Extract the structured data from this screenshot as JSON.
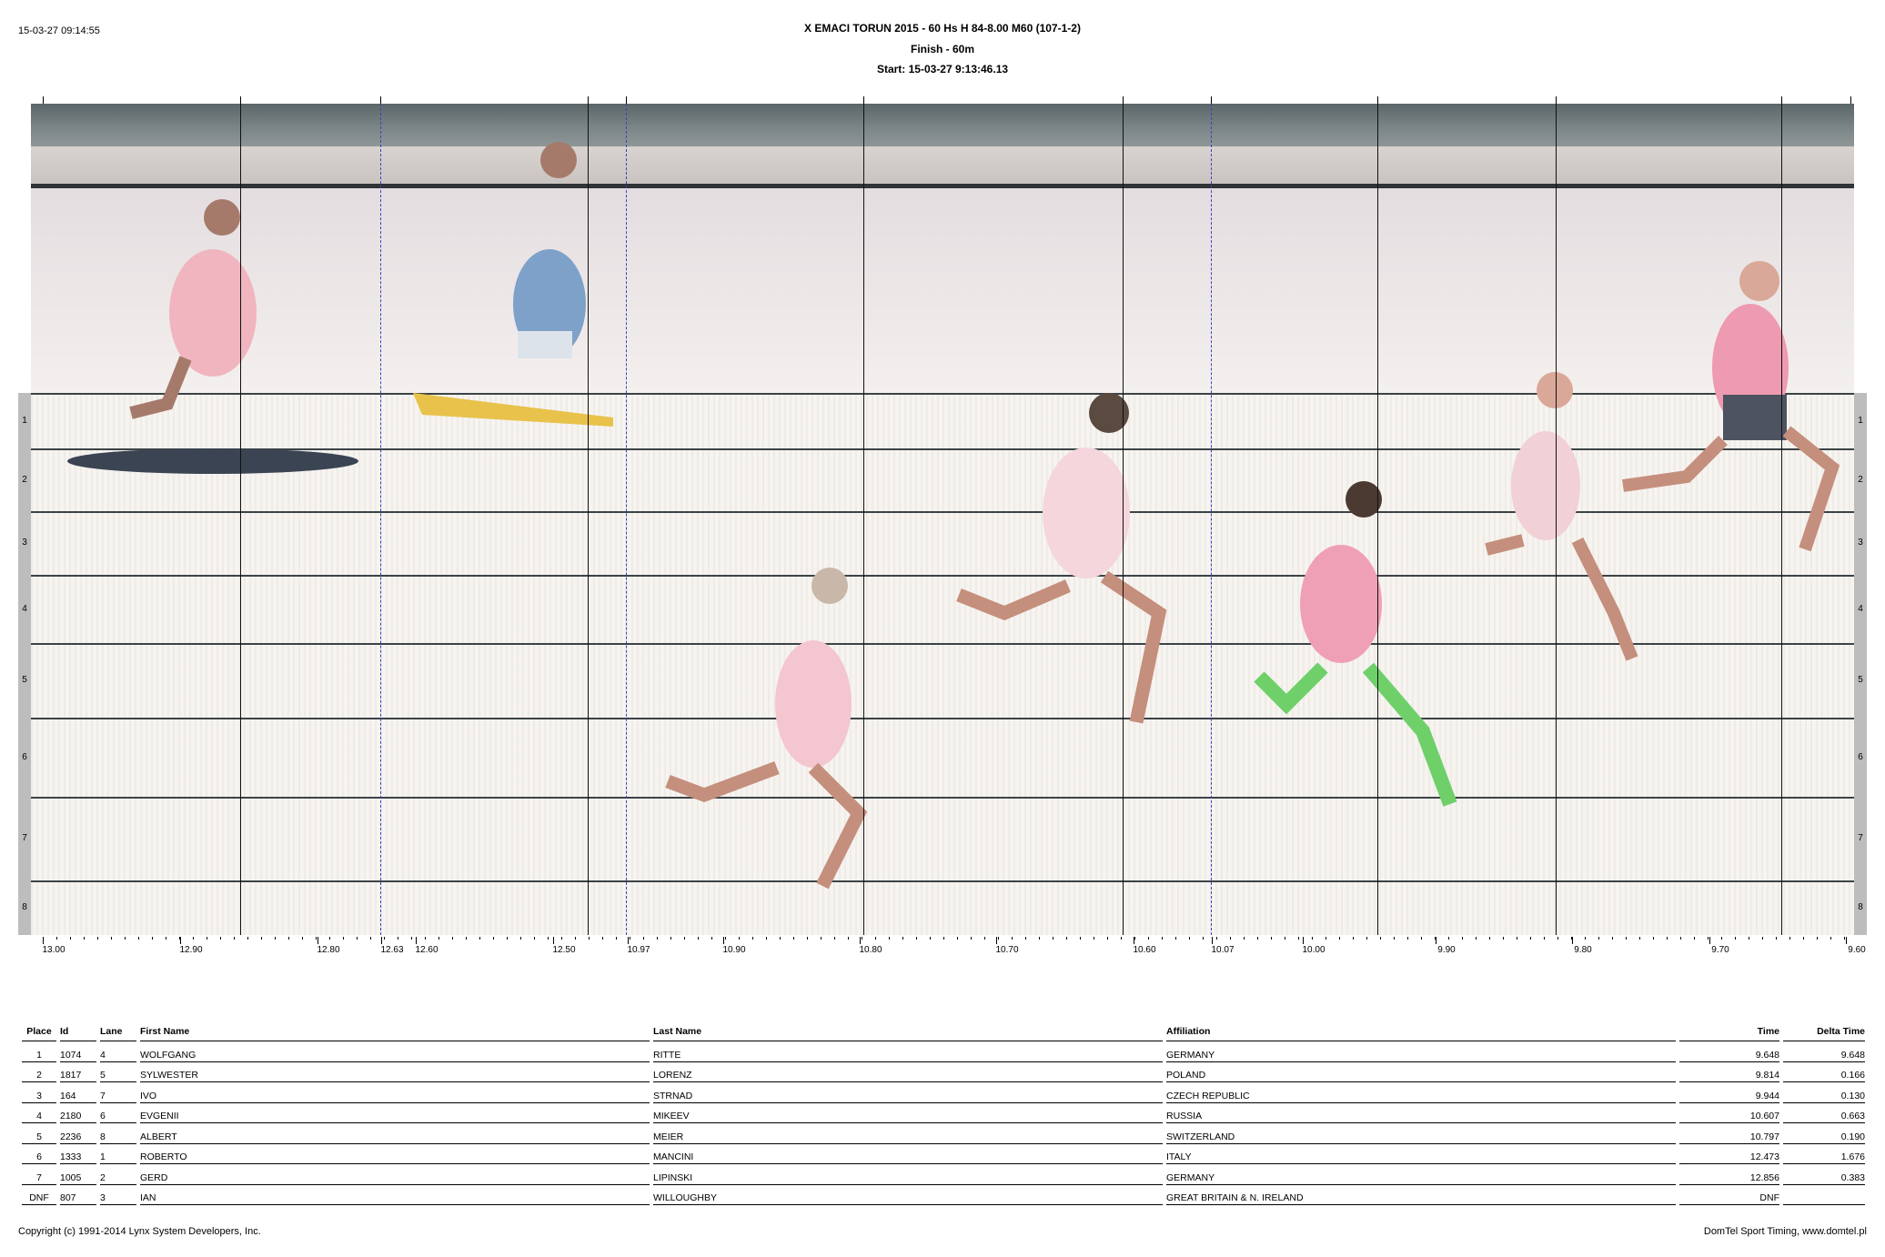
{
  "header": {
    "printed": "15-03-27 09:14:55",
    "title": "X EMACI TORUN 2015 - 60 Hs H 84-8.00 M60 (107-1-2)",
    "subtitle": "Finish - 60m",
    "start": "Start: 15-03-27 9:13:46.13"
  },
  "photo": {
    "lanes": [
      "1",
      "2",
      "3",
      "4",
      "5",
      "6",
      "7",
      "8"
    ],
    "axis_labels": [
      "13.00",
      "12.90",
      "12.80",
      "12.63",
      "12.60",
      "12.50",
      "10.97",
      "10.90",
      "10.80",
      "10.70",
      "10.60",
      "10.07",
      "10.00",
      "9.90",
      "9.80",
      "9.70",
      "9.60"
    ],
    "colors": {
      "guide_dashed": "#3844c0",
      "top_band": "#6d7779",
      "background": "#f7f4f0"
    }
  },
  "results": {
    "columns": [
      "Place",
      "Id",
      "Lane",
      "First Name",
      "Last Name",
      "Affiliation",
      "Time",
      "Delta Time"
    ],
    "rows": [
      [
        "1",
        "1074",
        "4",
        "WOLFGANG",
        "RITTE",
        "GERMANY",
        "9.648",
        "9.648"
      ],
      [
        "2",
        "1817",
        "5",
        "SYLWESTER",
        "LORENZ",
        "POLAND",
        "9.814",
        "0.166"
      ],
      [
        "3",
        "164",
        "7",
        "IVO",
        "STRNAD",
        "CZECH REPUBLIC",
        "9.944",
        "0.130"
      ],
      [
        "4",
        "2180",
        "6",
        "EVGENII",
        "MIKEEV",
        "RUSSIA",
        "10.607",
        "0.663"
      ],
      [
        "5",
        "2236",
        "8",
        "ALBERT",
        "MEIER",
        "SWITZERLAND",
        "10.797",
        "0.190"
      ],
      [
        "6",
        "1333",
        "1",
        "ROBERTO",
        "MANCINI",
        "ITALY",
        "12.473",
        "1.676"
      ],
      [
        "7",
        "1005",
        "2",
        "GERD",
        "LIPINSKI",
        "GERMANY",
        "12.856",
        "0.383"
      ],
      [
        "DNF",
        "807",
        "3",
        "IAN",
        "WILLOUGHBY",
        "GREAT BRITAIN & N. IRELAND",
        "DNF",
        ""
      ]
    ]
  },
  "footer": {
    "copyright": "Copyright (c) 1991-2014 Lynx System Developers, Inc.",
    "credit": "DomTel Sport Timing, www.domtel.pl"
  }
}
